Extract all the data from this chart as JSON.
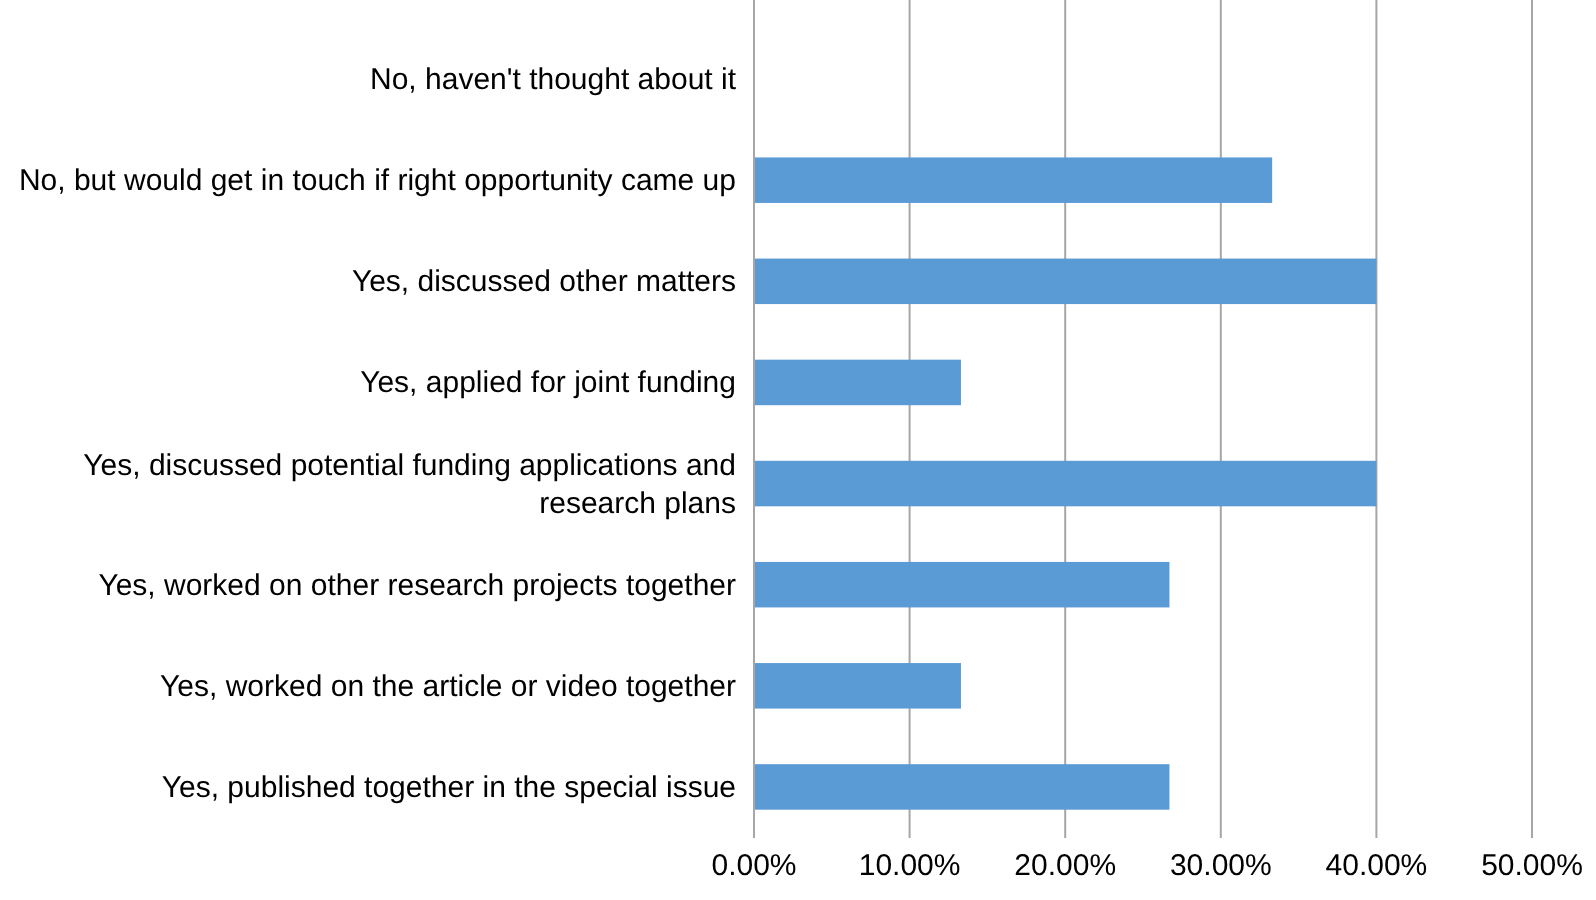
{
  "chart_data": {
    "type": "bar",
    "orientation": "horizontal",
    "categories": [
      "No, haven't thought about it",
      "No, but would get in touch if right opportunity came up",
      "Yes, discussed other matters",
      "Yes, applied for joint funding",
      "Yes, discussed potential funding applications and research plans",
      "Yes, worked on other research projects together",
      "Yes, worked on the article or video together",
      "Yes, published together in the special issue"
    ],
    "values": [
      0,
      33.3,
      40,
      13.3,
      40,
      26.7,
      13.3,
      26.7
    ],
    "color": "#5b9bd5",
    "xlim": [
      0,
      50
    ],
    "xticks": [
      {
        "value": 0,
        "label": "0.00%"
      },
      {
        "value": 10,
        "label": "10.00%"
      },
      {
        "value": 20,
        "label": "20.00%"
      },
      {
        "value": 30,
        "label": "30.00%"
      },
      {
        "value": 40,
        "label": "40.00%"
      },
      {
        "value": 50,
        "label": "50.00%"
      }
    ],
    "grid": "x"
  }
}
